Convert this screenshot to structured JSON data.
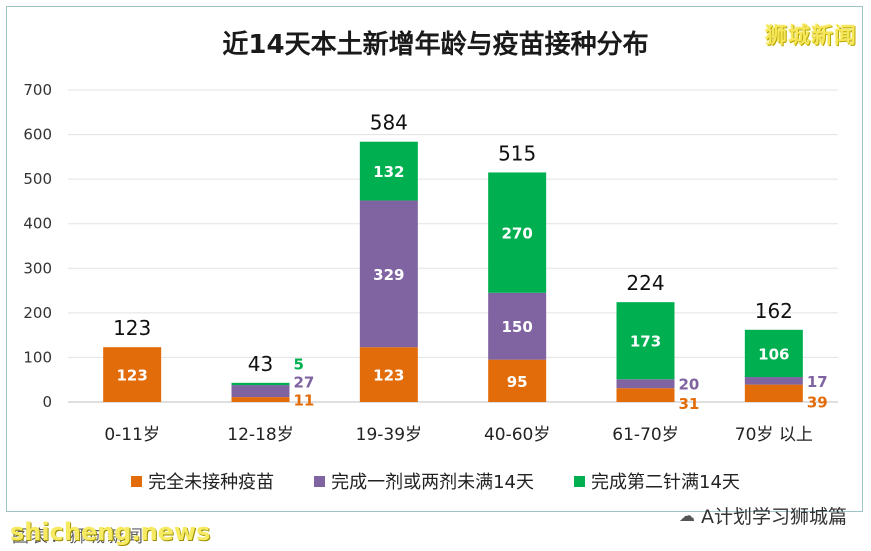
{
  "chart_data": {
    "type": "bar",
    "stacked": true,
    "title": "近14天本土新增年龄与疫苗接种分布",
    "categories": [
      "0-11岁",
      "12-18岁",
      "19-39岁",
      "40-60岁",
      "61-70岁",
      "70岁 以上"
    ],
    "series": [
      {
        "name": "完全未接种疫苗",
        "color": "#e36c0a",
        "values": [
          123,
          11,
          123,
          95,
          31,
          39
        ]
      },
      {
        "name": "完成一剂或两剂未满14天",
        "color": "#8064a2",
        "values": [
          0,
          27,
          329,
          150,
          20,
          17
        ]
      },
      {
        "name": "完成第二针满14天",
        "color": "#00b050",
        "values": [
          0,
          5,
          132,
          270,
          173,
          106
        ]
      }
    ],
    "totals": [
      123,
      43,
      584,
      515,
      224,
      162
    ],
    "yticks": [
      0,
      100,
      200,
      300,
      400,
      500,
      600,
      700
    ],
    "ylim": [
      0,
      700
    ],
    "grid": true,
    "legend_position": "bottom"
  },
  "branding": {
    "top_right": "狮城新闻",
    "bottom_left": "shicheng.news",
    "source": "图表：狮城新闻",
    "wechat": "A计划学习狮城篇"
  }
}
